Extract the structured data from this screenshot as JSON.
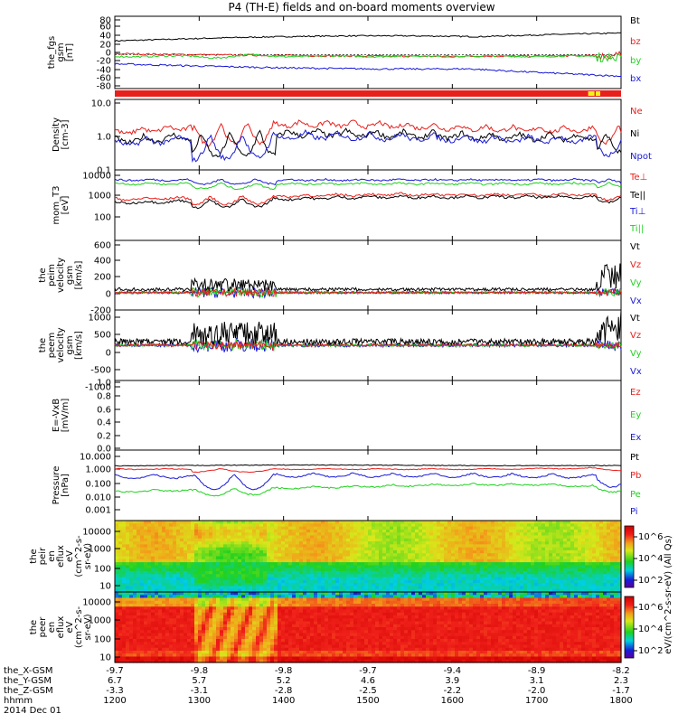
{
  "title": "P4 (TH-E) fields and on-board moments overview",
  "colors": {
    "black": "#000000",
    "red": "#e8201c",
    "green": "#1fd11f",
    "blue": "#1a1ad6",
    "yellow": "#f2f21a"
  },
  "x_ticks": [
    "1200",
    "1300",
    "1400",
    "1500",
    "1600",
    "1700",
    "1800"
  ],
  "footer": {
    "rows": [
      {
        "label": "the_X-GSM",
        "values": [
          "-9.7",
          "-9.8",
          "-9.8",
          "-9.7",
          "-9.4",
          "-8.9",
          "-8.2"
        ]
      },
      {
        "label": "the_Y-GSM",
        "values": [
          "6.7",
          "5.7",
          "5.2",
          "4.6",
          "3.9",
          "3.1",
          "2.3"
        ]
      },
      {
        "label": "the_Z-GSM",
        "values": [
          "-3.3",
          "-3.1",
          "-2.8",
          "-2.5",
          "-2.2",
          "-2.0",
          "-1.7"
        ]
      },
      {
        "label": "hhmm",
        "values": [
          "1200",
          "1300",
          "1400",
          "1500",
          "1600",
          "1700",
          "1800"
        ]
      }
    ],
    "date": "2014 Dec 01"
  },
  "colorbar": {
    "label": "eV/(cm^2-s-sr-eV) (All Qs)",
    "upper_ticks": [
      "10^6",
      "10^4",
      "10^2"
    ],
    "lower_ticks": [
      "10^6",
      "10^4",
      "10^2"
    ]
  },
  "chart_data": [
    {
      "type": "line",
      "id": "bfield",
      "ylabel": [
        "the_fgs",
        "gsm",
        "[nT]"
      ],
      "ylim": [
        -80,
        90
      ],
      "yticks": [
        "80",
        "60",
        "40",
        "20",
        "0",
        "-20",
        "-40",
        "-60",
        "-80"
      ],
      "series": [
        {
          "name": "Bt",
          "color": "#000000"
        },
        {
          "name": "bz",
          "color": "#e8201c"
        },
        {
          "name": "by",
          "color": "#1fd11f"
        },
        {
          "name": "bx",
          "color": "#1a1ad6"
        }
      ]
    },
    {
      "type": "line",
      "id": "density",
      "ylabel": [
        "Density",
        "[cm-3]"
      ],
      "scale": "log",
      "ylim": [
        0.1,
        10
      ],
      "yticks": [
        "10.0",
        "1.0",
        "0.1"
      ],
      "series": [
        {
          "name": "Ne",
          "color": "#e8201c"
        },
        {
          "name": "Ni",
          "color": "#000000"
        },
        {
          "name": "Npot",
          "color": "#1a1ad6"
        }
      ]
    },
    {
      "type": "line",
      "id": "temp",
      "ylabel": [
        "mom_T3",
        "[eV]"
      ],
      "scale": "log",
      "ylim": [
        10,
        10000
      ],
      "yticks": [
        "10000",
        "1000",
        "100"
      ],
      "series": [
        {
          "name": "Te⊥",
          "color": "#e8201c"
        },
        {
          "name": "Te||",
          "color": "#000000"
        },
        {
          "name": "Ti⊥",
          "color": "#1a1ad6"
        },
        {
          "name": "Ti||",
          "color": "#1fd11f"
        }
      ]
    },
    {
      "type": "line",
      "id": "vi",
      "ylabel": [
        "the",
        "peim",
        "velocity",
        "gsm",
        "[km/s]"
      ],
      "ylim": [
        -200,
        600
      ],
      "yticks": [
        "600",
        "400",
        "200",
        "0",
        "-200"
      ],
      "series": [
        {
          "name": "Vt",
          "color": "#000000"
        },
        {
          "name": "Vz",
          "color": "#e8201c"
        },
        {
          "name": "Vy",
          "color": "#1fd11f"
        },
        {
          "name": "Vx",
          "color": "#1a1ad6"
        }
      ]
    },
    {
      "type": "line",
      "id": "ve",
      "ylabel": [
        "the",
        "peem",
        "velocity",
        "gsm",
        "[km/s]"
      ],
      "ylim": [
        -1000,
        1000
      ],
      "yticks": [
        "1000",
        "500",
        "0",
        "-500",
        "-1000"
      ],
      "series": [
        {
          "name": "Vt",
          "color": "#000000"
        },
        {
          "name": "Vz",
          "color": "#e8201c"
        },
        {
          "name": "Vy",
          "color": "#1fd11f"
        },
        {
          "name": "Vx",
          "color": "#1a1ad6"
        }
      ]
    },
    {
      "type": "line",
      "id": "efield",
      "ylabel": [
        "E=-VxB",
        "[mV/m]"
      ],
      "ylim": [
        0,
        1
      ],
      "yticks": [
        "1.0",
        "0.8",
        "0.6",
        "0.4",
        "0.2",
        "0.0"
      ],
      "series": [
        {
          "name": "Ez",
          "color": "#e8201c"
        },
        {
          "name": "Ey",
          "color": "#1fd11f"
        },
        {
          "name": "Ex",
          "color": "#1a1ad6"
        }
      ]
    },
    {
      "type": "line",
      "id": "pressure",
      "ylabel": [
        "Pressure",
        "[nPa]"
      ],
      "scale": "log",
      "ylim": [
        0.001,
        10
      ],
      "yticks": [
        "10.000",
        "1.000",
        "0.100",
        "0.010",
        "0.001"
      ],
      "series": [
        {
          "name": "Pt",
          "color": "#000000"
        },
        {
          "name": "Pb",
          "color": "#e8201c"
        },
        {
          "name": "Pe",
          "color": "#1fd11f"
        },
        {
          "name": "Pi",
          "color": "#1a1ad6"
        }
      ]
    },
    {
      "type": "heatmap",
      "id": "ion_spec",
      "ylabel": [
        "the",
        "peir",
        "en",
        "eflux",
        "eV",
        "(cm^2-s-",
        "sr-eV)"
      ],
      "scale": "log",
      "ylim": [
        5,
        20000
      ],
      "yticks": [
        "10000",
        "1000",
        "100",
        "10"
      ]
    },
    {
      "type": "heatmap",
      "id": "ele_spec",
      "ylabel": [
        "the",
        "peer",
        "en",
        "eflux",
        "eV",
        "(cm^2-s-",
        "sr-eV)"
      ],
      "scale": "log",
      "ylim": [
        5,
        20000
      ],
      "yticks": [
        "10000",
        "1000",
        "100",
        "10"
      ]
    }
  ]
}
